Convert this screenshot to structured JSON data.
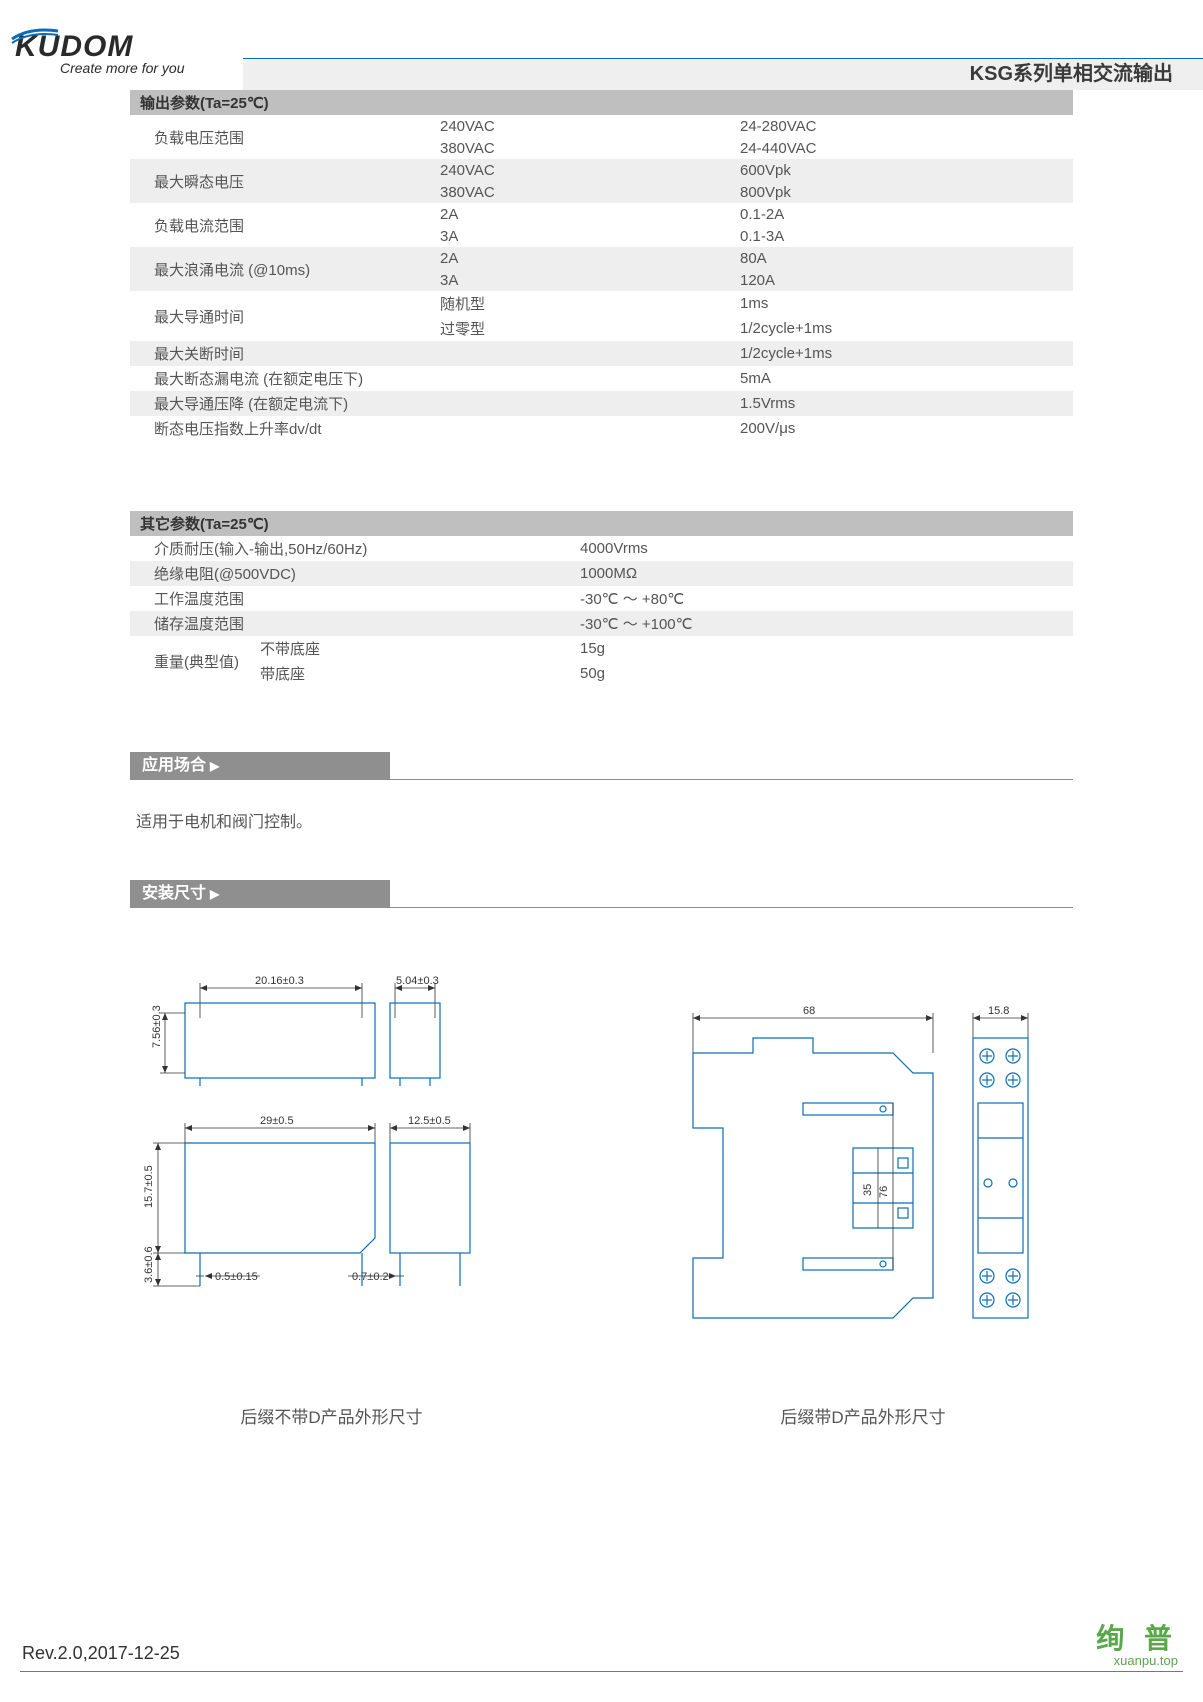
{
  "header": {
    "logo_text": "KUDOM",
    "logo_tagline": "Create more for you",
    "title": "KSG系列单相交流输出",
    "accent_color": "#0b6db7"
  },
  "table_output": {
    "header": "输出参数(Ta=25℃)",
    "rows": [
      {
        "bg": "odd",
        "span": true,
        "label": "负载电压范围",
        "mid": "240VAC",
        "val": "24-280VAC"
      },
      {
        "bg": "odd",
        "cont": true,
        "mid": "380VAC",
        "val": "24-440VAC"
      },
      {
        "bg": "even",
        "span": true,
        "label": "最大瞬态电压",
        "mid": "240VAC",
        "val": "600Vpk"
      },
      {
        "bg": "even",
        "cont": true,
        "mid": "380VAC",
        "val": "800Vpk"
      },
      {
        "bg": "odd",
        "span": true,
        "label": "负载电流范围",
        "mid": "2A",
        "val": "0.1-2A"
      },
      {
        "bg": "odd",
        "cont": true,
        "mid": "3A",
        "val": "0.1-3A"
      },
      {
        "bg": "even",
        "span": true,
        "label": "最大浪涌电流 (@10ms)",
        "mid": "2A",
        "val": "80A"
      },
      {
        "bg": "even",
        "cont": true,
        "mid": "3A",
        "val": "120A"
      },
      {
        "bg": "odd",
        "span": true,
        "label": "最大导通时间",
        "mid": "随机型",
        "val": "1ms"
      },
      {
        "bg": "odd",
        "cont": true,
        "mid": "过零型",
        "val": "1/2cycle+1ms"
      },
      {
        "bg": "even",
        "single": true,
        "label": "最大关断时间",
        "val": "1/2cycle+1ms"
      },
      {
        "bg": "odd",
        "single": true,
        "label": "最大断态漏电流 (在额定电压下)",
        "val": "5mA"
      },
      {
        "bg": "even",
        "single": true,
        "label": "最大导通压降 (在额定电流下)",
        "val": "1.5Vrms"
      },
      {
        "bg": "odd",
        "single": true,
        "label": "断态电压指数上升率dv/dt",
        "val": "200V/μs"
      }
    ]
  },
  "table_other": {
    "header": "其它参数(Ta=25℃)",
    "rows": [
      {
        "bg": "odd",
        "label": "介质耐压(输入-输出,50Hz/60Hz)",
        "val": "4000Vrms"
      },
      {
        "bg": "even",
        "label": "绝缘电阻(@500VDC)",
        "val": "1000MΩ"
      },
      {
        "bg": "odd",
        "label": "工作温度范围",
        "val": "-30℃ ～ +80℃"
      },
      {
        "bg": "even",
        "label": "储存温度范围",
        "val": "-30℃ ～ +100℃"
      },
      {
        "bg": "odd",
        "span": true,
        "label": "重量(典型值)",
        "mid": "不带底座",
        "val": "15g"
      },
      {
        "bg": "odd",
        "cont": true,
        "mid": "带底座",
        "val": "50g"
      }
    ]
  },
  "sections": {
    "application": {
      "title": "应用场合",
      "text": "适用于电机和阀门控制。"
    },
    "dimensions": {
      "title": "安装尺寸"
    }
  },
  "drawings": {
    "left": {
      "caption": "后缀不带D产品外形尺寸",
      "dims": {
        "d1": "20.16±0.3",
        "d2": "5.04±0.3",
        "d3": "7.56±0.3",
        "d4": "29±0.5",
        "d5": "12.5±0.5",
        "d6": "15.7±0.5",
        "d7": "3.6±0.6",
        "d8": "0.5±0.15",
        "d9": "0.7±0.2"
      }
    },
    "right": {
      "caption": "后缀带D产品外形尺寸",
      "dims": {
        "w": "68",
        "h1": "35",
        "h2": "76",
        "t": "15.8"
      }
    }
  },
  "footer": {
    "rev": "Rev.2.0,2017-12-25",
    "brand": "绚 普",
    "brand_url": "xuanpu.top"
  },
  "colors": {
    "table_head": "#bfbfbf",
    "row_even": "#eeeeee",
    "row_odd": "#ffffff",
    "section_bar": "#8f8f8f",
    "text": "#555555",
    "drawing_stroke": "#0b6db7",
    "footer_brand": "#5aa84b"
  }
}
